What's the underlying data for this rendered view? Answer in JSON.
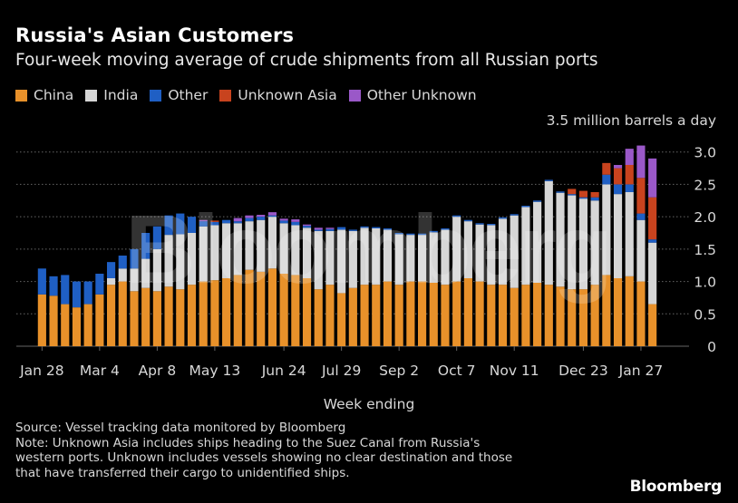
{
  "title": "Russia's Asian Customers",
  "subtitle": "Four-week moving average of crude shipments from all Russian ports",
  "source": "Source: Vessel tracking data monitored by Bloomberg",
  "note_lines": [
    "Note: Unknown Asia includes ships heading to the Suez Canal from Russia's",
    "western ports. Unknown includes vessels showing no clear destination and those",
    "that have transferred their cargo to unidentified ships."
  ],
  "brand": "Bloomberg",
  "watermark": "Bloomberg",
  "colors": {
    "China": "#e8912a",
    "India": "#d6d6d6",
    "Other": "#1f5fc4",
    "Unknown Asia": "#c8431e",
    "Other Unknown": "#9a58c8",
    "grid": "#666666",
    "axis_text": "#d8d8d8"
  },
  "chart_data": {
    "type": "bar",
    "stacked": true,
    "title": "Russia's Asian Customers",
    "subtitle": "Four-week moving average of crude shipments from all Russian ports",
    "xlabel": "Week ending",
    "ylabel": "3.5 million barrels a day",
    "ylim": [
      0,
      3.5
    ],
    "yticks": [
      "0",
      "0.5",
      "1.0",
      "1.5",
      "2.0",
      "2.5",
      "3.0"
    ],
    "xtick_labels": [
      "Jan 28",
      "Mar 4",
      "Apr 8",
      "May 13",
      "Jun 24",
      "Jul 29",
      "Sep 2",
      "Oct 7",
      "Nov 11",
      "Dec 23",
      "Jan 27"
    ],
    "xtick_indices": [
      0,
      5,
      10,
      15,
      21,
      26,
      31,
      36,
      41,
      47,
      52
    ],
    "legend_position": "top",
    "categories": [
      "Jan 28",
      "Feb 4",
      "Feb 11",
      "Feb 18",
      "Feb 25",
      "Mar 4",
      "Mar 11",
      "Mar 18",
      "Mar 25",
      "Apr 1",
      "Apr 8",
      "Apr 15",
      "Apr 22",
      "Apr 29",
      "May 6",
      "May 13",
      "May 20",
      "May 27",
      "Jun 3",
      "Jun 10",
      "Jun 17",
      "Jun 24",
      "Jul 1",
      "Jul 8",
      "Jul 15",
      "Jul 22",
      "Jul 29",
      "Aug 5",
      "Aug 12",
      "Aug 19",
      "Aug 26",
      "Sep 2",
      "Sep 9",
      "Sep 16",
      "Sep 23",
      "Sep 30",
      "Oct 7",
      "Oct 14",
      "Oct 21",
      "Oct 28",
      "Nov 4",
      "Nov 11",
      "Nov 18",
      "Nov 25",
      "Dec 2",
      "Dec 9",
      "Dec 16",
      "Dec 23",
      "Dec 30",
      "Jan 6",
      "Jan 13",
      "Jan 20",
      "Jan 27",
      "Feb 3"
    ],
    "series": [
      {
        "name": "China",
        "values": [
          0.8,
          0.78,
          0.65,
          0.6,
          0.65,
          0.8,
          0.95,
          1.0,
          0.85,
          0.9,
          0.85,
          0.92,
          0.88,
          0.95,
          1.0,
          1.02,
          1.05,
          1.1,
          1.18,
          1.15,
          1.2,
          1.12,
          1.1,
          1.05,
          0.88,
          0.95,
          0.82,
          0.9,
          0.95,
          0.95,
          1.0,
          0.95,
          1.0,
          1.0,
          0.98,
          0.95,
          1.0,
          1.05,
          1.0,
          0.95,
          0.95,
          0.9,
          0.95,
          0.98,
          0.95,
          0.92,
          0.88,
          0.88,
          0.95,
          1.1,
          1.05,
          1.08,
          1.0,
          0.65
        ]
      },
      {
        "name": "India",
        "values": [
          0.0,
          0.0,
          0.0,
          0.0,
          0.0,
          0.0,
          0.1,
          0.2,
          0.35,
          0.45,
          0.65,
          0.8,
          0.85,
          0.8,
          0.85,
          0.85,
          0.85,
          0.8,
          0.75,
          0.8,
          0.8,
          0.78,
          0.77,
          0.78,
          0.9,
          0.83,
          0.98,
          0.88,
          0.88,
          0.87,
          0.8,
          0.78,
          0.72,
          0.72,
          0.78,
          0.85,
          1.0,
          0.88,
          0.88,
          0.92,
          1.02,
          1.12,
          1.2,
          1.25,
          1.6,
          1.45,
          1.45,
          1.4,
          1.3,
          1.4,
          1.3,
          1.3,
          0.95,
          0.95
        ]
      },
      {
        "name": "Other",
        "values": [
          0.4,
          0.3,
          0.45,
          0.4,
          0.35,
          0.32,
          0.25,
          0.2,
          0.3,
          0.4,
          0.35,
          0.3,
          0.32,
          0.25,
          0.08,
          0.05,
          0.05,
          0.03,
          0.05,
          0.05,
          0.02,
          0.04,
          0.05,
          0.03,
          0.02,
          0.03,
          0.04,
          0.02,
          0.02,
          0.02,
          0.02,
          0.02,
          0.02,
          0.02,
          0.02,
          0.02,
          0.02,
          0.02,
          0.02,
          0.02,
          0.02,
          0.02,
          0.02,
          0.02,
          0.02,
          0.02,
          0.02,
          0.02,
          0.05,
          0.15,
          0.15,
          0.12,
          0.1,
          0.05
        ]
      },
      {
        "name": "Unknown Asia",
        "values": [
          0.0,
          0.0,
          0.0,
          0.0,
          0.0,
          0.0,
          0.0,
          0.0,
          0.0,
          0.0,
          0.0,
          0.0,
          0.0,
          0.0,
          0.0,
          0.02,
          0.0,
          0.0,
          0.0,
          0.0,
          0.0,
          0.0,
          0.0,
          0.0,
          0.0,
          0.0,
          0.0,
          0.0,
          0.0,
          0.0,
          0.0,
          0.0,
          0.0,
          0.0,
          0.0,
          0.0,
          0.0,
          0.0,
          0.0,
          0.0,
          0.0,
          0.0,
          0.0,
          0.0,
          0.0,
          0.0,
          0.08,
          0.1,
          0.08,
          0.18,
          0.25,
          0.3,
          0.55,
          0.65
        ]
      },
      {
        "name": "Other Unknown",
        "values": [
          0.0,
          0.0,
          0.0,
          0.0,
          0.0,
          0.0,
          0.0,
          0.0,
          0.0,
          0.0,
          0.0,
          0.0,
          0.0,
          0.0,
          0.02,
          0.0,
          0.0,
          0.05,
          0.04,
          0.03,
          0.05,
          0.03,
          0.04,
          0.02,
          0.03,
          0.02,
          0.0,
          0.0,
          0.0,
          0.0,
          0.0,
          0.0,
          0.0,
          0.0,
          0.0,
          0.0,
          0.0,
          0.0,
          0.0,
          0.0,
          0.0,
          0.0,
          0.0,
          0.0,
          0.0,
          0.0,
          0.0,
          0.0,
          0.0,
          0.0,
          0.05,
          0.25,
          0.5,
          0.6
        ]
      }
    ]
  }
}
